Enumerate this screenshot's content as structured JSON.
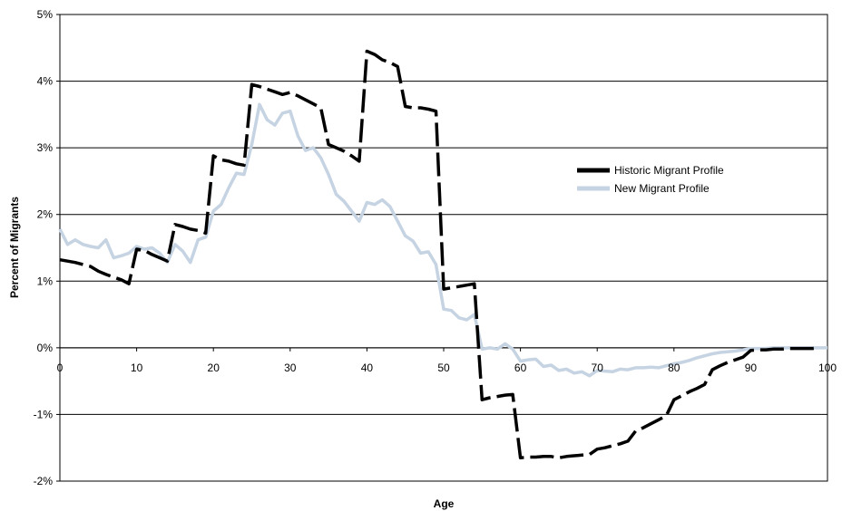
{
  "chart_data": {
    "type": "line",
    "title": "",
    "xlabel": "Age",
    "ylabel": "Percent of Migrants",
    "xlim": [
      0,
      100
    ],
    "ylim": [
      -2,
      5
    ],
    "x_ticks": [
      0,
      10,
      20,
      30,
      40,
      50,
      60,
      70,
      80,
      90,
      100
    ],
    "y_ticks": [
      -2,
      -1,
      0,
      1,
      2,
      3,
      4,
      5
    ],
    "y_tick_suffix": "%",
    "grid": "horizontal",
    "legend_position": "right",
    "series": [
      {
        "name": "Historic Migrant Profile",
        "color": "#000000",
        "style": "dashed",
        "points": [
          [
            0,
            1.32
          ],
          [
            1,
            1.3
          ],
          [
            2,
            1.28
          ],
          [
            3,
            1.25
          ],
          [
            4,
            1.22
          ],
          [
            5,
            1.15
          ],
          [
            6,
            1.1
          ],
          [
            7,
            1.06
          ],
          [
            8,
            1.02
          ],
          [
            9,
            0.96
          ],
          [
            10,
            1.48
          ],
          [
            11,
            1.46
          ],
          [
            12,
            1.4
          ],
          [
            13,
            1.35
          ],
          [
            14,
            1.3
          ],
          [
            15,
            1.85
          ],
          [
            16,
            1.82
          ],
          [
            17,
            1.78
          ],
          [
            18,
            1.76
          ],
          [
            19,
            1.72
          ],
          [
            20,
            2.88
          ],
          [
            21,
            2.82
          ],
          [
            22,
            2.8
          ],
          [
            23,
            2.76
          ],
          [
            24,
            2.74
          ],
          [
            25,
            3.95
          ],
          [
            26,
            3.92
          ],
          [
            27,
            3.88
          ],
          [
            28,
            3.84
          ],
          [
            29,
            3.8
          ],
          [
            30,
            3.83
          ],
          [
            31,
            3.78
          ],
          [
            32,
            3.72
          ],
          [
            33,
            3.66
          ],
          [
            34,
            3.6
          ],
          [
            35,
            3.05
          ],
          [
            36,
            3.0
          ],
          [
            37,
            2.95
          ],
          [
            38,
            2.88
          ],
          [
            39,
            2.8
          ],
          [
            40,
            4.45
          ],
          [
            41,
            4.4
          ],
          [
            42,
            4.32
          ],
          [
            43,
            4.28
          ],
          [
            44,
            4.22
          ],
          [
            45,
            3.62
          ],
          [
            46,
            3.6
          ],
          [
            47,
            3.6
          ],
          [
            48,
            3.58
          ],
          [
            49,
            3.55
          ],
          [
            50,
            0.88
          ],
          [
            51,
            0.9
          ],
          [
            52,
            0.92
          ],
          [
            53,
            0.94
          ],
          [
            54,
            0.96
          ],
          [
            55,
            -0.78
          ],
          [
            56,
            -0.75
          ],
          [
            57,
            -0.73
          ],
          [
            58,
            -0.71
          ],
          [
            59,
            -0.7
          ],
          [
            60,
            -1.65
          ],
          [
            61,
            -1.64
          ],
          [
            62,
            -1.64
          ],
          [
            63,
            -1.63
          ],
          [
            64,
            -1.63
          ],
          [
            65,
            -1.65
          ],
          [
            66,
            -1.63
          ],
          [
            67,
            -1.62
          ],
          [
            68,
            -1.61
          ],
          [
            69,
            -1.6
          ],
          [
            70,
            -1.52
          ],
          [
            71,
            -1.5
          ],
          [
            72,
            -1.47
          ],
          [
            73,
            -1.44
          ],
          [
            74,
            -1.4
          ],
          [
            75,
            -1.25
          ],
          [
            76,
            -1.2
          ],
          [
            77,
            -1.14
          ],
          [
            78,
            -1.08
          ],
          [
            79,
            -1.02
          ],
          [
            80,
            -0.78
          ],
          [
            81,
            -0.72
          ],
          [
            82,
            -0.66
          ],
          [
            83,
            -0.61
          ],
          [
            84,
            -0.55
          ],
          [
            85,
            -0.33
          ],
          [
            86,
            -0.27
          ],
          [
            87,
            -0.22
          ],
          [
            88,
            -0.18
          ],
          [
            89,
            -0.14
          ],
          [
            90,
            -0.04
          ],
          [
            91,
            -0.03
          ],
          [
            92,
            -0.03
          ],
          [
            93,
            -0.02
          ],
          [
            94,
            -0.02
          ],
          [
            95,
            -0.01
          ],
          [
            96,
            -0.01
          ],
          [
            97,
            -0.01
          ],
          [
            98,
            -0.01
          ],
          [
            99,
            0.0
          ]
        ]
      },
      {
        "name": "New Migrant Profile",
        "color": "#c5d3e2",
        "style": "solid",
        "points": [
          [
            0,
            1.78
          ],
          [
            1,
            1.55
          ],
          [
            2,
            1.62
          ],
          [
            3,
            1.55
          ],
          [
            4,
            1.52
          ],
          [
            5,
            1.5
          ],
          [
            6,
            1.62
          ],
          [
            7,
            1.35
          ],
          [
            8,
            1.38
          ],
          [
            9,
            1.42
          ],
          [
            10,
            1.52
          ],
          [
            11,
            1.48
          ],
          [
            12,
            1.5
          ],
          [
            13,
            1.42
          ],
          [
            14,
            1.28
          ],
          [
            15,
            1.55
          ],
          [
            16,
            1.45
          ],
          [
            17,
            1.28
          ],
          [
            18,
            1.62
          ],
          [
            19,
            1.66
          ],
          [
            20,
            2.05
          ],
          [
            21,
            2.15
          ],
          [
            22,
            2.4
          ],
          [
            23,
            2.62
          ],
          [
            24,
            2.6
          ],
          [
            25,
            3.05
          ],
          [
            26,
            3.65
          ],
          [
            27,
            3.42
          ],
          [
            28,
            3.34
          ],
          [
            29,
            3.52
          ],
          [
            30,
            3.55
          ],
          [
            31,
            3.18
          ],
          [
            32,
            2.96
          ],
          [
            33,
            3.0
          ],
          [
            34,
            2.85
          ],
          [
            35,
            2.6
          ],
          [
            36,
            2.3
          ],
          [
            37,
            2.2
          ],
          [
            38,
            2.05
          ],
          [
            39,
            1.9
          ],
          [
            40,
            2.18
          ],
          [
            41,
            2.15
          ],
          [
            42,
            2.22
          ],
          [
            43,
            2.12
          ],
          [
            44,
            1.9
          ],
          [
            45,
            1.68
          ],
          [
            46,
            1.6
          ],
          [
            47,
            1.42
          ],
          [
            48,
            1.44
          ],
          [
            49,
            1.25
          ],
          [
            50,
            0.58
          ],
          [
            51,
            0.56
          ],
          [
            52,
            0.45
          ],
          [
            53,
            0.42
          ],
          [
            54,
            0.5
          ],
          [
            55,
            -0.02
          ],
          [
            56,
            0.0
          ],
          [
            57,
            -0.02
          ],
          [
            58,
            0.06
          ],
          [
            59,
            -0.02
          ],
          [
            60,
            -0.2
          ],
          [
            61,
            -0.18
          ],
          [
            62,
            -0.17
          ],
          [
            63,
            -0.28
          ],
          [
            64,
            -0.26
          ],
          [
            65,
            -0.34
          ],
          [
            66,
            -0.32
          ],
          [
            67,
            -0.38
          ],
          [
            68,
            -0.36
          ],
          [
            69,
            -0.42
          ],
          [
            70,
            -0.34
          ],
          [
            71,
            -0.35
          ],
          [
            72,
            -0.36
          ],
          [
            73,
            -0.32
          ],
          [
            74,
            -0.33
          ],
          [
            75,
            -0.3
          ],
          [
            76,
            -0.3
          ],
          [
            77,
            -0.29
          ],
          [
            78,
            -0.3
          ],
          [
            79,
            -0.27
          ],
          [
            80,
            -0.24
          ],
          [
            81,
            -0.22
          ],
          [
            82,
            -0.19
          ],
          [
            83,
            -0.15
          ],
          [
            84,
            -0.12
          ],
          [
            85,
            -0.09
          ],
          [
            86,
            -0.07
          ],
          [
            87,
            -0.06
          ],
          [
            88,
            -0.05
          ],
          [
            89,
            -0.03
          ],
          [
            90,
            -0.01
          ],
          [
            91,
            -0.01
          ],
          [
            92,
            -0.01
          ],
          [
            93,
            0.0
          ],
          [
            94,
            0.0
          ],
          [
            95,
            0.0
          ],
          [
            96,
            0.0
          ],
          [
            97,
            0.0
          ],
          [
            98,
            0.0
          ],
          [
            99,
            0.0
          ],
          [
            100,
            0.0
          ]
        ]
      }
    ]
  }
}
